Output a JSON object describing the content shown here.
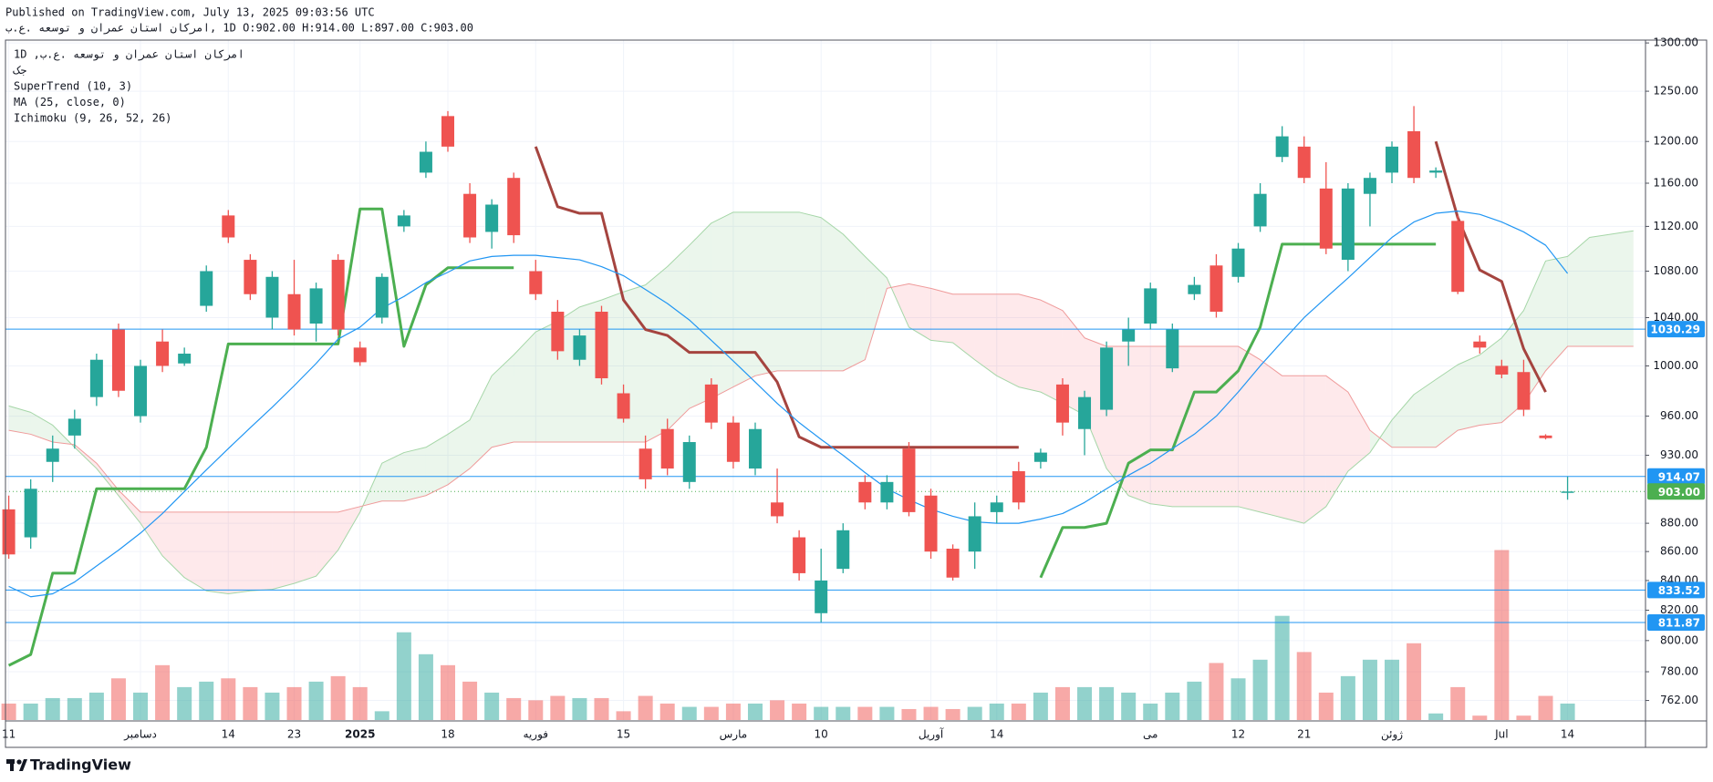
{
  "header": {
    "published": "Published on TradingView.com, July 13, 2025 09:03:56 UTC",
    "symbol_line": "ب.ع. هعسوت و نارمع ناتسا ناکرما, 1D O:902.00 H:914.00 L:897.00 C:903.00"
  },
  "footer": {
    "brand": "TradingView"
  },
  "chart_data": {
    "type": "candlestick",
    "legend": [
      "1D ,ب.ع. هعسوت و نارمع ناتسا ناکرما",
      "کج"
    ],
    "log_scale": true,
    "grid": true,
    "up_color": "#26a69a",
    "down_color": "#ef5350",
    "ylim": [
      750,
      1303
    ],
    "yticks": [
      {
        "value": 762,
        "label": "762.00"
      },
      {
        "value": 780,
        "label": "780.00"
      },
      {
        "value": 800,
        "label": "800.00"
      },
      {
        "value": 820,
        "label": "820.00"
      },
      {
        "value": 840,
        "label": "840.00"
      },
      {
        "value": 860,
        "label": "860.00"
      },
      {
        "value": 880,
        "label": "880.00"
      },
      {
        "value": 930,
        "label": "930.00"
      },
      {
        "value": 960,
        "label": "960.00"
      },
      {
        "value": 1000,
        "label": "1000.00"
      },
      {
        "value": 1040,
        "label": "1040.00"
      },
      {
        "value": 1080,
        "label": "1080.00"
      },
      {
        "value": 1120,
        "label": "1120.00"
      },
      {
        "value": 1160,
        "label": "1160.00"
      },
      {
        "value": 1200,
        "label": "1200.00"
      },
      {
        "value": 1250,
        "label": "1250.00"
      },
      {
        "value": 1300,
        "label": "1300.00"
      }
    ],
    "categories": [
      "11",
      null,
      null,
      null,
      null,
      null,
      "دسامبر",
      null,
      null,
      null,
      "14",
      null,
      null,
      "23",
      null,
      null,
      "2025",
      null,
      null,
      null,
      "18",
      null,
      null,
      null,
      "فوریه",
      null,
      null,
      null,
      "15",
      null,
      null,
      null,
      null,
      "مارس",
      null,
      null,
      null,
      "10",
      null,
      null,
      null,
      null,
      "آوریل",
      null,
      null,
      "14",
      null,
      null,
      null,
      null,
      null,
      null,
      "می",
      null,
      null,
      null,
      "12",
      null,
      null,
      "21",
      null,
      null,
      null,
      "ژوئن",
      null,
      null,
      null,
      null,
      "Jul",
      null,
      null,
      "14",
      null,
      null,
      null
    ],
    "open": [
      890,
      870,
      925,
      945,
      975,
      1030,
      960,
      1020,
      1002,
      1050,
      1130,
      1090,
      1040,
      1060,
      1035,
      1090,
      1015,
      1040,
      1120,
      1170,
      1225,
      1150,
      1115,
      1165,
      1080,
      1045,
      1005,
      1045,
      978,
      935,
      950,
      910,
      985,
      955,
      920,
      895,
      870,
      818,
      848,
      910,
      895,
      935,
      900,
      862,
      860,
      888,
      918,
      925,
      985,
      950,
      965,
      1020,
      1035,
      998,
      1060,
      1085,
      1075,
      1120,
      1185,
      1195,
      1155,
      1090,
      1150,
      1170,
      1210,
      1170,
      1125,
      1020,
      1000,
      995,
      945,
      902,
      null,
      null,
      null
    ],
    "high": [
      900,
      912,
      945,
      965,
      1010,
      1035,
      1005,
      1030,
      1015,
      1085,
      1135,
      1095,
      1080,
      1090,
      1070,
      1095,
      1020,
      1078,
      1135,
      1200,
      1230,
      1160,
      1145,
      1170,
      1090,
      1055,
      1030,
      1050,
      985,
      945,
      958,
      945,
      990,
      960,
      955,
      920,
      875,
      862,
      880,
      915,
      915,
      940,
      905,
      865,
      895,
      900,
      925,
      935,
      990,
      980,
      1020,
      1040,
      1070,
      1035,
      1075,
      1095,
      1105,
      1160,
      1215,
      1205,
      1180,
      1160,
      1170,
      1200,
      1235,
      1175,
      1130,
      1025,
      1005,
      1005,
      946,
      914,
      null,
      null,
      null
    ],
    "low": [
      855,
      862,
      910,
      935,
      968,
      975,
      955,
      995,
      1000,
      1045,
      1105,
      1055,
      1030,
      1025,
      1020,
      1025,
      1000,
      1035,
      1115,
      1165,
      1190,
      1105,
      1100,
      1105,
      1055,
      1005,
      1000,
      985,
      955,
      905,
      915,
      905,
      950,
      920,
      915,
      880,
      840,
      812,
      845,
      890,
      890,
      885,
      855,
      840,
      848,
      880,
      890,
      920,
      945,
      930,
      960,
      1000,
      1030,
      995,
      1055,
      1040,
      1070,
      1115,
      1180,
      1160,
      1095,
      1080,
      1120,
      1160,
      1160,
      1165,
      1060,
      1010,
      990,
      960,
      942,
      897,
      null,
      null,
      null
    ],
    "close": [
      858,
      905,
      935,
      958,
      1005,
      980,
      1000,
      1000,
      1010,
      1080,
      1110,
      1060,
      1075,
      1030,
      1065,
      1030,
      1003,
      1075,
      1130,
      1190,
      1195,
      1110,
      1140,
      1112,
      1060,
      1012,
      1025,
      990,
      958,
      912,
      920,
      940,
      955,
      925,
      950,
      885,
      845,
      840,
      875,
      895,
      910,
      888,
      860,
      842,
      885,
      895,
      895,
      932,
      955,
      975,
      1015,
      1030,
      1065,
      1030,
      1068,
      1045,
      1100,
      1150,
      1205,
      1165,
      1100,
      1155,
      1165,
      1195,
      1165,
      1172,
      1062,
      1015,
      993,
      965,
      943,
      903,
      null,
      null,
      null
    ],
    "volume": [
      15,
      15,
      20,
      20,
      25,
      38,
      25,
      50,
      30,
      35,
      38,
      30,
      25,
      30,
      35,
      40,
      30,
      8,
      80,
      60,
      50,
      35,
      25,
      20,
      18,
      22,
      20,
      20,
      8,
      22,
      15,
      12,
      12,
      15,
      15,
      18,
      15,
      12,
      12,
      12,
      12,
      10,
      12,
      10,
      12,
      15,
      15,
      25,
      30,
      30,
      30,
      25,
      15,
      25,
      35,
      52,
      38,
      55,
      95,
      62,
      25,
      40,
      55,
      55,
      70,
      6,
      30,
      4,
      155,
      4,
      22,
      15,
      null,
      null,
      null
    ],
    "indicators": [
      {
        "name": "SuperTrend (10, 3)",
        "width": 3,
        "lines": [
          {
            "color": "#4caf50",
            "values": [
              784,
              791,
              845,
              845,
              905,
              905,
              905,
              905,
              905,
              936,
              1018,
              1018,
              1018,
              1018,
              1018,
              1018,
              1136,
              1136,
              1016,
              1068,
              1083,
              1083,
              1083,
              1083,
              null,
              null,
              null,
              null,
              null,
              null,
              null,
              null,
              null,
              null,
              null,
              null,
              null,
              null,
              null,
              null,
              null,
              null,
              null,
              null,
              null,
              null,
              null,
              842,
              877,
              877,
              880,
              924,
              934,
              934,
              979,
              979,
              996,
              1032,
              1104,
              1104,
              1104,
              1104,
              1104,
              1104,
              1104,
              1104,
              null,
              null,
              null,
              null,
              null,
              null,
              null,
              null,
              null
            ]
          },
          {
            "color": "#a5443f",
            "values": [
              null,
              null,
              null,
              null,
              null,
              null,
              null,
              null,
              null,
              null,
              null,
              null,
              null,
              null,
              null,
              null,
              null,
              null,
              null,
              null,
              null,
              null,
              null,
              null,
              1195,
              1138,
              1132,
              1132,
              1055,
              1030,
              1025,
              1011,
              1011,
              1011,
              1011,
              987,
              944,
              936,
              936,
              936,
              936,
              936,
              936,
              936,
              936,
              936,
              936,
              null,
              null,
              null,
              null,
              null,
              null,
              null,
              null,
              null,
              null,
              null,
              null,
              null,
              null,
              null,
              null,
              null,
              null,
              1200,
              1128,
              1081,
              1071,
              1014,
              979,
              null,
              null,
              null
            ]
          }
        ]
      },
      {
        "name": "MA (25, close, 0)",
        "width": 1.2,
        "lines": [
          {
            "color": "#2196f3",
            "values": [
              836,
              829,
              831,
              839,
              850,
              861,
              873,
              887,
              903,
              919,
              935,
              951,
              967,
              984,
              1002,
              1022,
              1032,
              1048,
              1058,
              1070,
              1079,
              1089,
              1093,
              1094,
              1094,
              1092,
              1090,
              1084,
              1076,
              1064,
              1052,
              1038,
              1021,
              1004,
              987,
              970,
              955,
              942,
              930,
              917,
              905,
              897,
              890,
              885,
              881,
              880,
              880,
              883,
              887,
              895,
              905,
              915,
              924,
              935,
              946,
              960,
              979,
              1000,
              1020,
              1040,
              1057,
              1074,
              1092,
              1110,
              1124,
              1132,
              1134,
              1131,
              1124,
              1115,
              1103,
              1078,
              null,
              null,
              null
            ]
          }
        ]
      },
      {
        "name": "Ichimoku (9, 26, 52, 26)",
        "width": 1,
        "cloud_colors": [
          "rgba(76,175,80,0.11)",
          "rgba(242,54,69,0.11)"
        ],
        "lines": [
          {
            "color": "#a5d6a7",
            "values": [
              968,
              963,
              953,
              936,
              920,
              900,
              880,
              857,
              842,
              833,
              831,
              833,
              834,
              838,
              843,
              861,
              888,
              924,
              932,
              936,
              946,
              957,
              992,
              1009,
              1028,
              1037,
              1049,
              1055,
              1062,
              1068,
              1084,
              1103,
              1123,
              1133,
              1133,
              1133,
              1133,
              1128,
              1113,
              1093,
              1074,
              1032,
              1021,
              1019,
              1005,
              992,
              983,
              979,
              970,
              961,
              920,
              900,
              894,
              892,
              892,
              892,
              892,
              888,
              884,
              880,
              892,
              918,
              932,
              957,
              977,
              989,
              1001,
              1009,
              1023,
              1046,
              1089,
              1093,
              1110,
              1113,
              1116
            ]
          },
          {
            "color": "#ef9a9a",
            "values": [
              949,
              946,
              940,
              938,
              924,
              904,
              888,
              888,
              888,
              888,
              888,
              888,
              888,
              888,
              888,
              888,
              892,
              896,
              896,
              900,
              908,
              920,
              936,
              940,
              940,
              940,
              940,
              940,
              940,
              940,
              949,
              966,
              974,
              983,
              992,
              996,
              996,
              996,
              996,
              1005,
              1065,
              1069,
              1065,
              1060,
              1060,
              1060,
              1060,
              1055,
              1046,
              1023,
              1016,
              1016,
              1016,
              1016,
              1016,
              1016,
              1016,
              1005,
              992,
              992,
              992,
              979,
              949,
              936,
              936,
              936,
              949,
              953,
              955,
              970,
              996,
              1016,
              1016,
              1016,
              1016
            ]
          }
        ]
      }
    ],
    "levels": [
      {
        "value": 1030.29,
        "color": "#2196f3"
      },
      {
        "value": 914.07,
        "color": "#2196f3"
      },
      {
        "value": 903,
        "label": "903.00",
        "color": "#4caf50",
        "dotted": true
      },
      {
        "value": 833.52,
        "color": "#2196f3"
      },
      {
        "value": 811.87,
        "color": "#2196f3"
      }
    ]
  }
}
